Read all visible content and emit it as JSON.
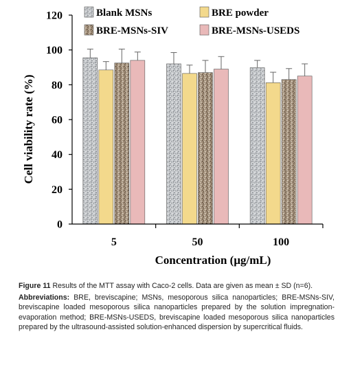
{
  "chart_data": {
    "type": "bar",
    "categories": [
      "5",
      "50",
      "100"
    ],
    "series": [
      {
        "name": "Blank MSNs",
        "values": [
          95.5,
          92.0,
          89.8
        ],
        "errors": [
          5.0,
          6.5,
          4.2
        ],
        "color": "#bfc3c8",
        "pattern": "gray-speckle"
      },
      {
        "name": "BRE powder",
        "values": [
          88.5,
          86.5,
          81.2
        ],
        "errors": [
          4.8,
          4.8,
          6.0
        ],
        "color": "#f3d98c",
        "pattern": "solid"
      },
      {
        "name": "BRE-MSNs-SIV",
        "values": [
          92.5,
          87.0,
          83.0
        ],
        "errors": [
          8.0,
          7.0,
          6.3
        ],
        "color": "#9c8b78",
        "pattern": "brown-speckle"
      },
      {
        "name": "BRE-MSNs-USEDS",
        "values": [
          94.0,
          89.0,
          85.0
        ],
        "errors": [
          4.8,
          7.2,
          7.0
        ],
        "color": "#e9b9b9",
        "pattern": "solid"
      }
    ],
    "ylim": [
      0,
      120
    ],
    "yticks": [
      "0",
      "20",
      "40",
      "60",
      "80",
      "100",
      "120"
    ],
    "xlabel": "Concentration (μg/mL)",
    "ylabel": "Cell viability rate (%)",
    "legend_position": "top",
    "grid": false
  },
  "caption": {
    "figure_label": "Figure 11",
    "figure_text": "Results of the MTT assay with Caco-2 cells. Data are given as mean ± SD (n=6).",
    "abbrev_label": "Abbreviations:",
    "abbrev_text": "BRE, breviscapine; MSNs, mesoporous silica nanoparticles; BRE-MSNs-SIV, breviscapine loaded mesoporous silica nanoparticles prepared by the solution impregnation-evaporation method; BRE-MSNs-USEDS, breviscapine loaded mesoporous silica nanoparticles prepared by the ultrasound-assisted solution-enhanced dispersion by supercritical fluids."
  }
}
